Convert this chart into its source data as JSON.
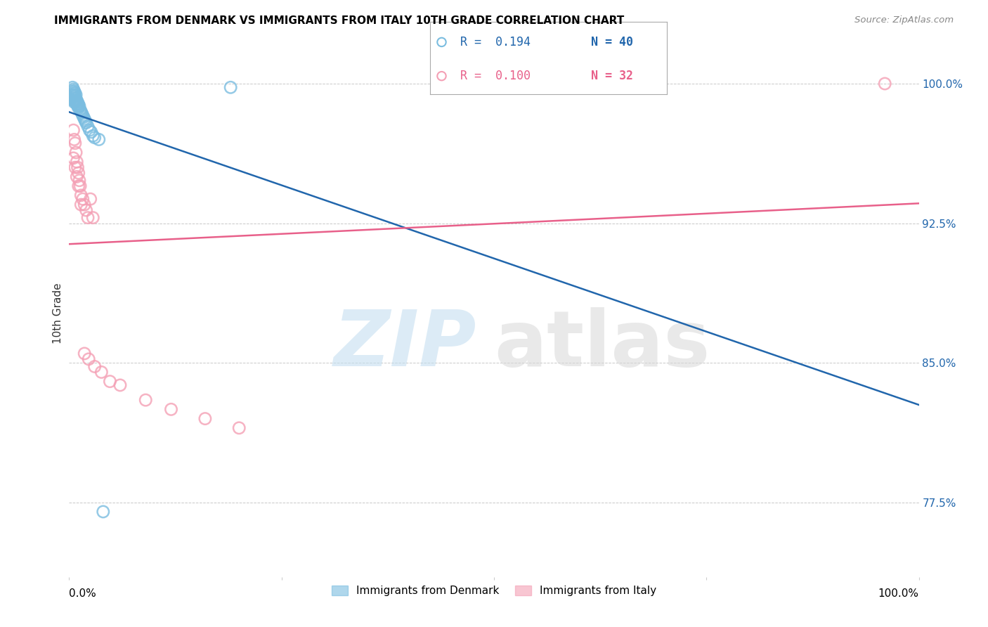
{
  "title": "IMMIGRANTS FROM DENMARK VS IMMIGRANTS FROM ITALY 10TH GRADE CORRELATION CHART",
  "source": "Source: ZipAtlas.com",
  "ylabel": "10th Grade",
  "xlim": [
    0.0,
    1.0
  ],
  "ylim": [
    0.735,
    1.018
  ],
  "yticks": [
    0.775,
    0.85,
    0.925,
    1.0
  ],
  "ytick_labels": [
    "77.5%",
    "85.0%",
    "92.5%",
    "100.0%"
  ],
  "legend_blue_r": "R =  0.194",
  "legend_blue_n": "N = 40",
  "legend_pink_r": "R =  0.100",
  "legend_pink_n": "N = 32",
  "blue_color": "#7bbde0",
  "pink_color": "#f4a0b5",
  "blue_line_color": "#2166ac",
  "pink_line_color": "#e8608a",
  "blue_x": [
    0.004,
    0.004,
    0.004,
    0.005,
    0.005,
    0.005,
    0.005,
    0.006,
    0.006,
    0.006,
    0.006,
    0.007,
    0.007,
    0.007,
    0.008,
    0.008,
    0.008,
    0.009,
    0.009,
    0.01,
    0.01,
    0.011,
    0.011,
    0.012,
    0.013,
    0.014,
    0.015,
    0.016,
    0.017,
    0.018,
    0.019,
    0.02,
    0.022,
    0.024,
    0.026,
    0.028,
    0.03,
    0.035,
    0.19,
    0.04
  ],
  "blue_y": [
    0.998,
    0.996,
    0.994,
    0.997,
    0.995,
    0.993,
    0.991,
    0.996,
    0.994,
    0.992,
    0.99,
    0.995,
    0.993,
    0.991,
    0.994,
    0.992,
    0.99,
    0.991,
    0.989,
    0.99,
    0.988,
    0.989,
    0.987,
    0.988,
    0.986,
    0.985,
    0.984,
    0.983,
    0.982,
    0.981,
    0.98,
    0.979,
    0.977,
    0.975,
    0.974,
    0.972,
    0.971,
    0.97,
    0.998,
    0.77
  ],
  "pink_x": [
    0.005,
    0.006,
    0.007,
    0.008,
    0.009,
    0.01,
    0.011,
    0.012,
    0.013,
    0.014,
    0.016,
    0.018,
    0.02,
    0.022,
    0.025,
    0.028,
    0.005,
    0.007,
    0.009,
    0.011,
    0.014,
    0.018,
    0.023,
    0.03,
    0.038,
    0.048,
    0.06,
    0.09,
    0.12,
    0.16,
    0.2,
    0.96
  ],
  "pink_y": [
    0.975,
    0.97,
    0.968,
    0.963,
    0.958,
    0.955,
    0.952,
    0.948,
    0.945,
    0.94,
    0.938,
    0.935,
    0.932,
    0.928,
    0.938,
    0.928,
    0.96,
    0.955,
    0.95,
    0.945,
    0.935,
    0.855,
    0.852,
    0.848,
    0.845,
    0.84,
    0.838,
    0.83,
    0.825,
    0.82,
    0.815,
    1.0
  ]
}
